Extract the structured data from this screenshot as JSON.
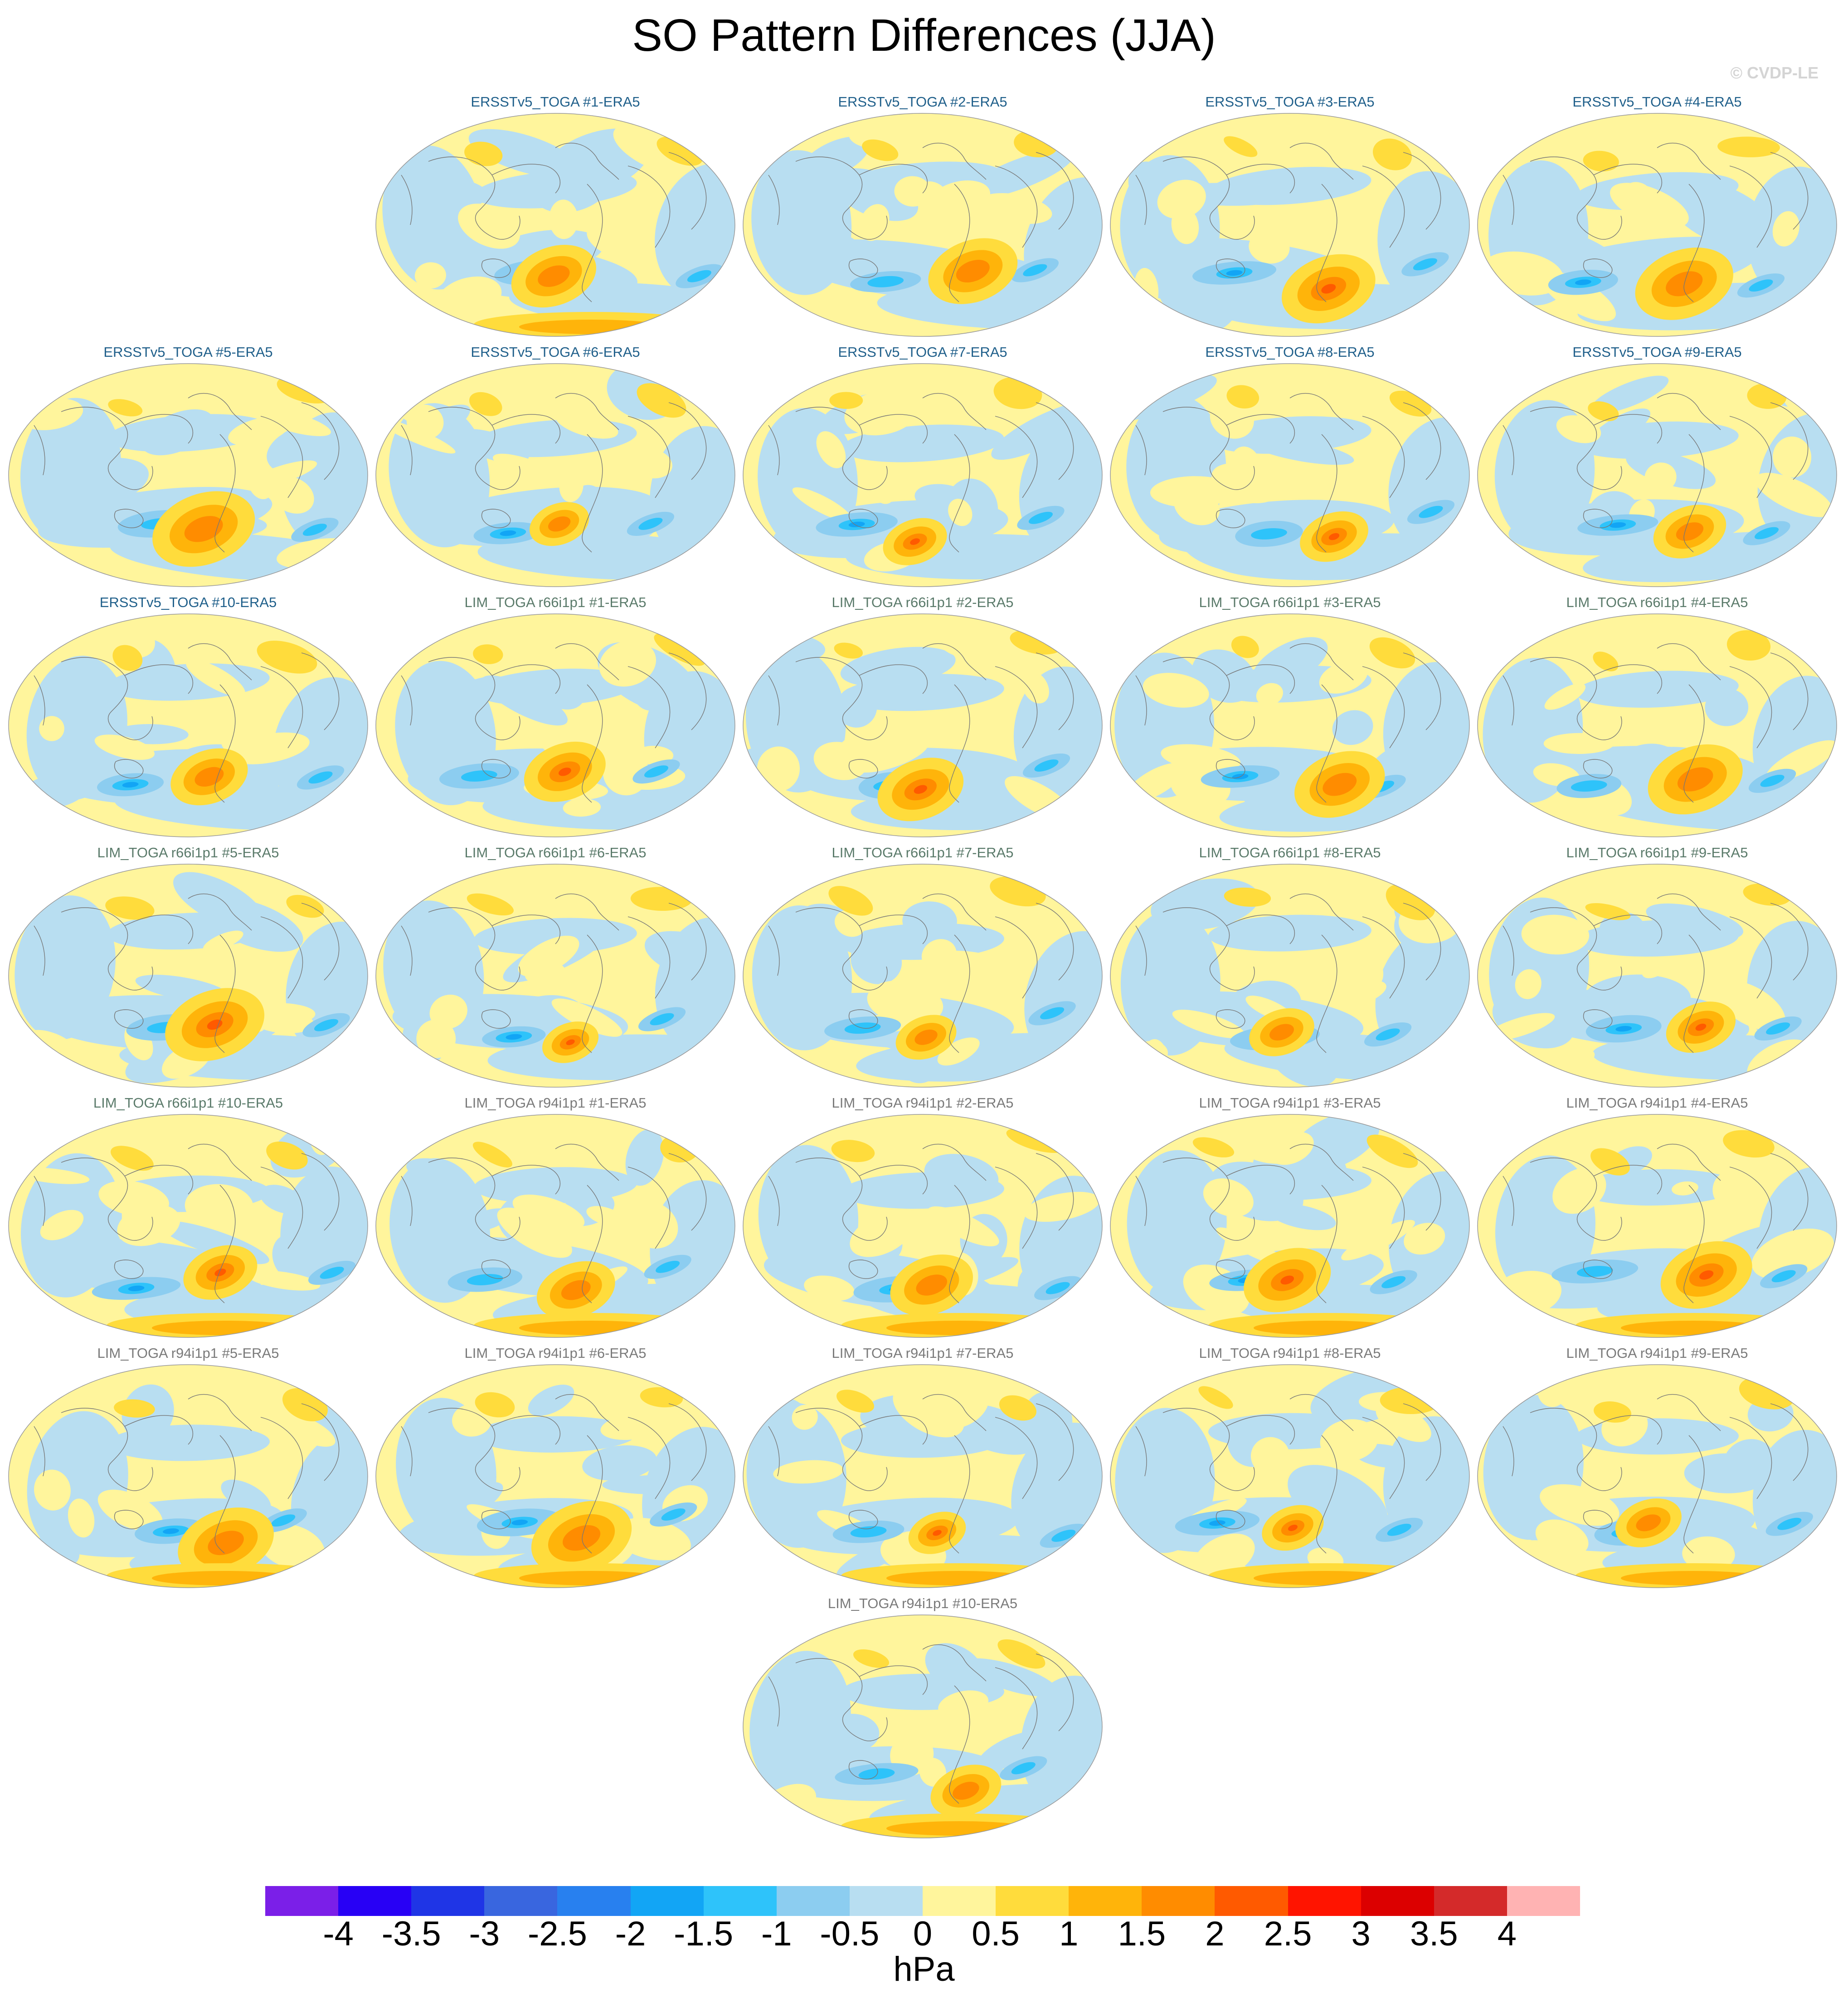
{
  "title": "SO Pattern Differences (JJA)",
  "copyright": "© CVDP-LE",
  "colorbar": {
    "unit": "hPa",
    "labels": [
      "-4",
      "-3.5",
      "-3",
      "-2.5",
      "-2",
      "-1.5",
      "-1",
      "-0.5",
      "0",
      "0.5",
      "1",
      "1.5",
      "2",
      "2.5",
      "3",
      "3.5",
      "4"
    ],
    "colors": [
      "#7b1fe8",
      "#2800f5",
      "#1f35e6",
      "#3966df",
      "#2880ef",
      "#12a5f5",
      "#2ec3fa",
      "#8ccdf0",
      "#b8def1",
      "#fff59c",
      "#ffdc3c",
      "#ffb40a",
      "#ff8c00",
      "#ff5a00",
      "#ff1400",
      "#dc0000",
      "#d42a2a",
      "#ffb3b3"
    ]
  },
  "panels": [
    {
      "title": "ERSSTv5_TOGA #1-ERA5",
      "group": "obs"
    },
    {
      "title": "ERSSTv5_TOGA #2-ERA5",
      "group": "obs"
    },
    {
      "title": "ERSSTv5_TOGA #3-ERA5",
      "group": "obs"
    },
    {
      "title": "ERSSTv5_TOGA #4-ERA5",
      "group": "obs"
    },
    {
      "title": "ERSSTv5_TOGA #5-ERA5",
      "group": "obs"
    },
    {
      "title": "ERSSTv5_TOGA #6-ERA5",
      "group": "obs"
    },
    {
      "title": "ERSSTv5_TOGA #7-ERA5",
      "group": "obs"
    },
    {
      "title": "ERSSTv5_TOGA #8-ERA5",
      "group": "obs"
    },
    {
      "title": "ERSSTv5_TOGA #9-ERA5",
      "group": "obs"
    },
    {
      "title": "ERSSTv5_TOGA #10-ERA5",
      "group": "obs"
    },
    {
      "title": "LIM_TOGA r66i1p1 #1-ERA5",
      "group": "r66"
    },
    {
      "title": "LIM_TOGA r66i1p1 #2-ERA5",
      "group": "r66"
    },
    {
      "title": "LIM_TOGA r66i1p1 #3-ERA5",
      "group": "r66"
    },
    {
      "title": "LIM_TOGA r66i1p1 #4-ERA5",
      "group": "r66"
    },
    {
      "title": "LIM_TOGA r66i1p1 #5-ERA5",
      "group": "r66"
    },
    {
      "title": "LIM_TOGA r66i1p1 #6-ERA5",
      "group": "r66"
    },
    {
      "title": "LIM_TOGA r66i1p1 #7-ERA5",
      "group": "r66"
    },
    {
      "title": "LIM_TOGA r66i1p1 #8-ERA5",
      "group": "r66"
    },
    {
      "title": "LIM_TOGA r66i1p1 #9-ERA5",
      "group": "r66"
    },
    {
      "title": "LIM_TOGA r66i1p1 #10-ERA5",
      "group": "r66"
    },
    {
      "title": "LIM_TOGA r94i1p1 #1-ERA5",
      "group": "r94"
    },
    {
      "title": "LIM_TOGA r94i1p1 #2-ERA5",
      "group": "r94"
    },
    {
      "title": "LIM_TOGA r94i1p1 #3-ERA5",
      "group": "r94"
    },
    {
      "title": "LIM_TOGA r94i1p1 #4-ERA5",
      "group": "r94"
    },
    {
      "title": "LIM_TOGA r94i1p1 #5-ERA5",
      "group": "r94"
    },
    {
      "title": "LIM_TOGA r94i1p1 #6-ERA5",
      "group": "r94"
    },
    {
      "title": "LIM_TOGA r94i1p1 #7-ERA5",
      "group": "r94"
    },
    {
      "title": "LIM_TOGA r94i1p1 #8-ERA5",
      "group": "r94"
    },
    {
      "title": "LIM_TOGA r94i1p1 #9-ERA5",
      "group": "r94"
    },
    {
      "title": "LIM_TOGA r94i1p1 #10-ERA5",
      "group": "r94"
    }
  ],
  "title_colors": {
    "obs": "#1f5f8a",
    "r66": "#5a7a6a",
    "r94": "#7a7a7a"
  }
}
